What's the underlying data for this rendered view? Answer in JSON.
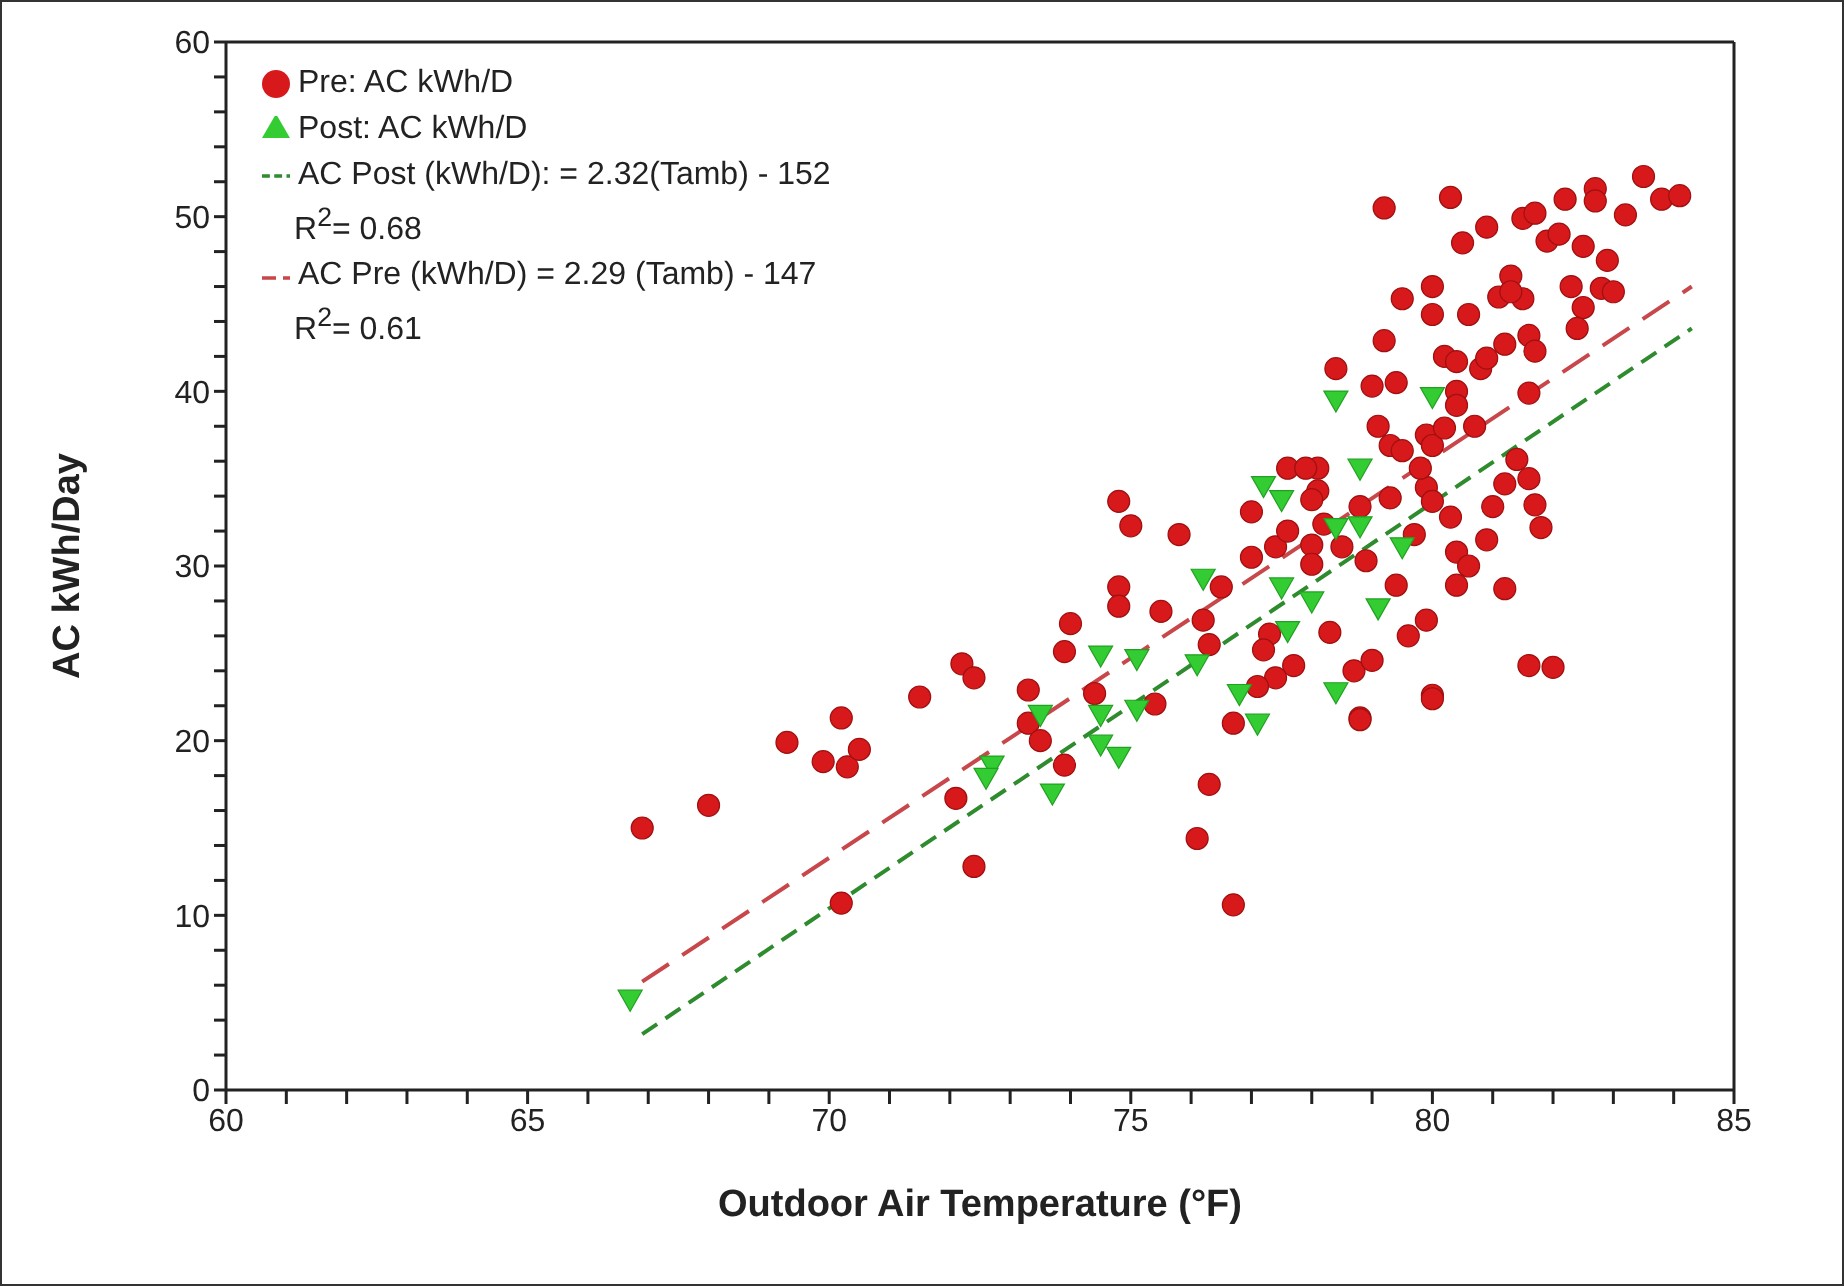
{
  "chart_data": {
    "type": "scatter",
    "xlabel": "Outdoor Air Temperature (°F)",
    "ylabel": "AC kWh/Day",
    "xlim": [
      60,
      85
    ],
    "xticks": [
      60,
      {
        "value": 61,
        "label": null
      },
      {
        "value": 62,
        "label": null
      },
      {
        "value": 63,
        "label": null
      },
      {
        "value": 64,
        "label": null
      },
      65,
      {
        "value": 66,
        "label": null
      },
      {
        "value": 67,
        "label": null
      },
      {
        "value": 68,
        "label": null
      },
      {
        "value": 69,
        "label": null
      },
      70,
      {
        "value": 71,
        "label": null
      },
      {
        "value": 72,
        "label": null
      },
      {
        "value": 73,
        "label": null
      },
      {
        "value": 74,
        "label": null
      },
      75,
      {
        "value": 76,
        "label": null
      },
      {
        "value": 77,
        "label": null
      },
      {
        "value": 78,
        "label": null
      },
      {
        "value": 79,
        "label": null
      },
      80,
      {
        "value": 81,
        "label": null
      },
      {
        "value": 82,
        "label": null
      },
      {
        "value": 83,
        "label": null
      },
      {
        "value": 84,
        "label": null
      },
      85
    ],
    "ylim": [
      0,
      60
    ],
    "yticks": [
      0,
      {
        "value": 2,
        "label": null
      },
      {
        "value": 4,
        "label": null
      },
      {
        "value": 6,
        "label": null
      },
      {
        "value": 8,
        "label": null
      },
      10,
      {
        "value": 12,
        "label": null
      },
      {
        "value": 14,
        "label": null
      },
      {
        "value": 16,
        "label": null
      },
      {
        "value": 18,
        "label": null
      },
      20,
      {
        "value": 22,
        "label": null
      },
      {
        "value": 24,
        "label": null
      },
      {
        "value": 26,
        "label": null
      },
      {
        "value": 28,
        "label": null
      },
      30,
      {
        "value": 32,
        "label": null
      },
      {
        "value": 34,
        "label": null
      },
      {
        "value": 36,
        "label": null
      },
      {
        "value": 38,
        "label": null
      },
      40,
      {
        "value": 42,
        "label": null
      },
      {
        "value": 44,
        "label": null
      },
      {
        "value": 46,
        "label": null
      },
      {
        "value": 48,
        "label": null
      },
      50,
      {
        "value": 52,
        "label": null
      },
      {
        "value": 54,
        "label": null
      },
      {
        "value": 56,
        "label": null
      },
      {
        "value": 58,
        "label": null
      },
      60
    ],
    "grid": false,
    "legend": "top left",
    "annotations": [
      "R$^{2}$= 0.68",
      "R$^{2}$= 0.61"
    ],
    "series": [
      {
        "name": "Pre: AC kWh/D",
        "type": "scatter",
        "marker": "circle",
        "color": "#d7191c",
        "x": [
          66.9,
          68.0,
          69.3,
          69.9,
          70.2,
          70.3,
          70.5,
          70.2,
          71.5,
          72.2,
          72.4,
          72.1,
          72.4,
          73.3,
          73.3,
          73.5,
          73.9,
          73.9,
          74.0,
          74.4,
          74.8,
          74.8,
          74.8,
          75.0,
          75.5,
          75.4,
          75.8,
          76.3,
          76.1,
          76.7,
          76.2,
          76.3,
          76.5,
          76.7,
          77.0,
          77.0,
          77.4,
          77.6,
          77.3,
          77.2,
          77.7,
          77.4,
          77.1,
          78.1,
          78.0,
          78.0,
          78.3,
          78.5,
          78.9,
          78.7,
          79.0,
          78.8,
          78.8,
          79.3,
          79.7,
          79.4,
          79.6,
          79.9,
          80.0,
          79.9,
          79.2,
          80.3,
          80.5,
          80.9,
          81.5,
          81.7,
          82.2,
          82.7,
          82.7,
          83.2,
          83.5,
          83.8,
          84.1,
          81.9,
          82.1,
          82.5,
          82.9,
          82.3,
          82.8,
          83.0,
          81.3,
          81.1,
          81.5,
          81.3,
          82.5,
          82.4,
          79.5,
          80.0,
          80.0,
          80.6,
          79.2,
          80.2,
          80.4,
          80.8,
          80.9,
          81.2,
          81.6,
          81.7,
          78.4,
          79.0,
          79.4,
          80.4,
          80.4,
          81.6,
          80.7,
          79.1,
          79.3,
          79.5,
          79.9,
          80.0,
          80.2,
          79.8,
          81.4,
          81.2,
          81.6,
          81.0,
          81.7,
          81.8,
          80.3,
          80.9,
          80.0,
          80.4,
          80.6,
          80.4,
          81.2,
          78.1,
          77.6,
          77.9,
          78.0,
          78.2,
          81.6,
          80.0,
          78.8,
          82.0
        ],
        "values": [
          15.0,
          16.3,
          19.9,
          18.8,
          21.3,
          18.5,
          19.5,
          10.7,
          22.5,
          24.4,
          23.6,
          16.7,
          12.8,
          22.9,
          21.0,
          20.0,
          18.6,
          25.1,
          26.7,
          22.7,
          28.8,
          27.7,
          33.7,
          32.3,
          27.4,
          22.1,
          31.8,
          17.5,
          14.4,
          10.6,
          26.9,
          25.5,
          28.8,
          21.0,
          33.1,
          30.5,
          31.1,
          32.0,
          26.1,
          25.2,
          24.3,
          23.6,
          23.1,
          34.3,
          31.2,
          30.1,
          26.2,
          31.1,
          30.3,
          24.0,
          24.6,
          21.3,
          33.4,
          33.9,
          31.8,
          28.9,
          26.0,
          26.9,
          22.6,
          34.5,
          50.5,
          51.1,
          48.5,
          49.4,
          49.9,
          50.2,
          51.0,
          51.6,
          50.9,
          50.1,
          52.3,
          51.0,
          51.2,
          48.6,
          49.0,
          48.3,
          47.5,
          46.0,
          45.9,
          45.7,
          46.6,
          45.4,
          45.3,
          45.7,
          44.8,
          43.6,
          45.3,
          46.0,
          44.4,
          44.4,
          42.9,
          42.0,
          41.7,
          41.3,
          41.9,
          42.7,
          43.2,
          42.3,
          41.3,
          40.3,
          40.5,
          40.0,
          39.2,
          39.9,
          38.0,
          38.0,
          36.9,
          36.6,
          37.5,
          36.9,
          37.9,
          35.6,
          36.1,
          34.7,
          35.0,
          33.4,
          33.5,
          32.2,
          32.8,
          31.5,
          33.7,
          30.8,
          30.0,
          28.9,
          28.7,
          35.6,
          35.6,
          35.6,
          33.8,
          32.4,
          24.3,
          22.4,
          21.2,
          24.2
        ]
      },
      {
        "name": "Post: AC kWh/D",
        "type": "scatter",
        "marker": "triangle",
        "color": "#33cc33",
        "x": [
          66.7,
          72.7,
          72.6,
          73.7,
          73.5,
          74.5,
          75.1,
          76.1,
          74.5,
          75.1,
          74.5,
          74.8,
          76.8,
          77.1,
          76.2,
          77.5,
          78.0,
          77.6,
          79.1,
          78.4,
          78.4,
          78.8,
          79.5,
          77.2,
          77.5,
          78.4,
          80.0,
          78.8
        ],
        "values": [
          5.2,
          18.6,
          17.9,
          17.0,
          21.5,
          24.9,
          24.7,
          24.4,
          21.5,
          21.8,
          19.8,
          19.1,
          22.7,
          21.0,
          29.3,
          28.8,
          28.0,
          26.3,
          27.6,
          22.8,
          32.2,
          32.3,
          31.1,
          34.6,
          33.8,
          39.5,
          39.7,
          35.6
        ]
      },
      {
        "name": "AC Post (kWh/D): = 2.32(Tamb) - 152",
        "type": "line",
        "line_style": "dashed",
        "color": "#2e8b2e",
        "x": [
          66.9,
          84.3
        ],
        "values": [
          3.2,
          43.6
        ]
      },
      {
        "name": "AC Pre (kWh/D) = 2.29 (Tamb) - 147",
        "type": "line",
        "line_style": "dashed",
        "color": "#c8474a",
        "x": [
          66.9,
          84.3
        ],
        "values": [
          6.2,
          46.0
        ]
      }
    ]
  }
}
